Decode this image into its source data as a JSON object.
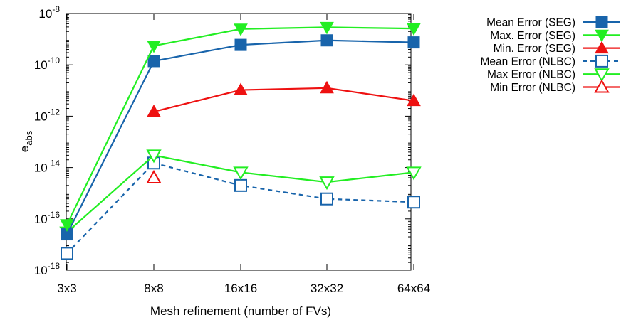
{
  "chart_data": {
    "type": "line",
    "xlabel": "Mesh refinement (number of FVs)",
    "ylabel": "e",
    "ylabel_sub": "abs",
    "categories": [
      "3x3",
      "8x8",
      "16x16",
      "32x32",
      "64x64"
    ],
    "y_scale": "log",
    "ylim": [
      1e-18,
      1e-08
    ],
    "y_ticks": [
      {
        "base": "10",
        "exp": "-18",
        "value": 1e-18
      },
      {
        "base": "10",
        "exp": "-16",
        "value": 1e-16
      },
      {
        "base": "10",
        "exp": "-14",
        "value": 1e-14
      },
      {
        "base": "10",
        "exp": "-12",
        "value": 1e-12
      },
      {
        "base": "10",
        "exp": "-10",
        "value": 1e-10
      },
      {
        "base": "10",
        "exp": "-8",
        "value": 1e-08
      }
    ],
    "grid": false,
    "legend_position": "outside-right",
    "series": [
      {
        "name": "Mean Error (SEG)",
        "color": "#1864ab",
        "marker": "square-filled",
        "line": "solid",
        "values": [
          2.5e-17,
          1.4e-10,
          6e-10,
          9e-10,
          7.5e-10
        ]
      },
      {
        "name": "Max. Error (SEG)",
        "color": "#22ee22",
        "marker": "triangle-down-filled",
        "line": "solid",
        "values": [
          6e-17,
          5.5e-10,
          2.5e-09,
          2.9e-09,
          2.6e-09
        ]
      },
      {
        "name": "Min. Error (SEG)",
        "color": "#ee1111",
        "marker": "triangle-up-filled",
        "line": "solid",
        "values": [
          null,
          1.5e-12,
          1.05e-11,
          1.25e-11,
          4e-12
        ]
      },
      {
        "name": "Mean Error (NLBC)",
        "color": "#1864ab",
        "marker": "square-open",
        "line": "dashed",
        "values": [
          4.5e-18,
          1.5e-14,
          2e-15,
          6e-16,
          4.5e-16
        ]
      },
      {
        "name": "Max Error (NLBC)",
        "color": "#22ee22",
        "marker": "triangle-down-open",
        "line": "solid",
        "values": [
          3e-17,
          3e-14,
          6.5e-15,
          2.7e-15,
          6.5e-15
        ]
      },
      {
        "name": "Min Error (NLBC)",
        "color": "#ee1111",
        "marker": "triangle-up-open",
        "line": "solid",
        "values": [
          null,
          4e-15,
          null,
          null,
          null
        ]
      }
    ]
  }
}
